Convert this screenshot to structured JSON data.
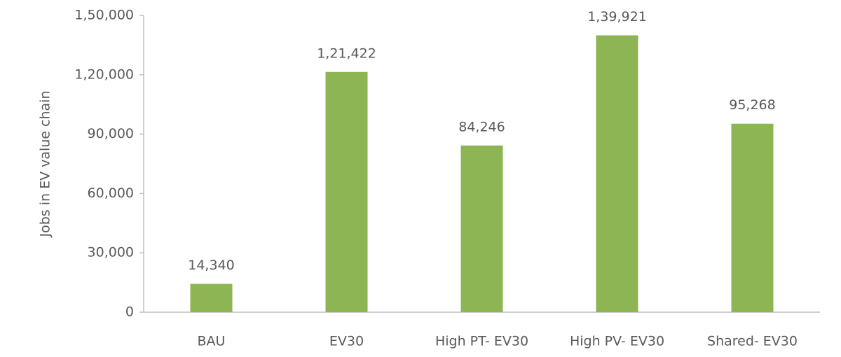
{
  "chart_data": {
    "type": "bar",
    "y_axis_label": "Jobs in EV value chain",
    "categories": [
      "BAU",
      "EV30",
      "High PT- EV30",
      "High PV- EV30",
      "Shared- EV30"
    ],
    "values": [
      14340,
      121422,
      84246,
      139921,
      95268
    ],
    "value_labels": [
      "14,340",
      "1,21,422",
      "84,246",
      "1,39,921",
      "95,268"
    ],
    "color": "#8db553",
    "ylim": [
      0,
      150000
    ],
    "yticks": [
      0,
      {
        "value": 30000,
        "label": "30,000"
      },
      {
        "value": 60000,
        "label": "60,000"
      },
      {
        "value": 90000,
        "label": "90,000"
      },
      {
        "value": 120000,
        "label": "1,20,000"
      },
      {
        "value": 150000,
        "label": "1,50,000"
      }
    ],
    "grid": false
  }
}
